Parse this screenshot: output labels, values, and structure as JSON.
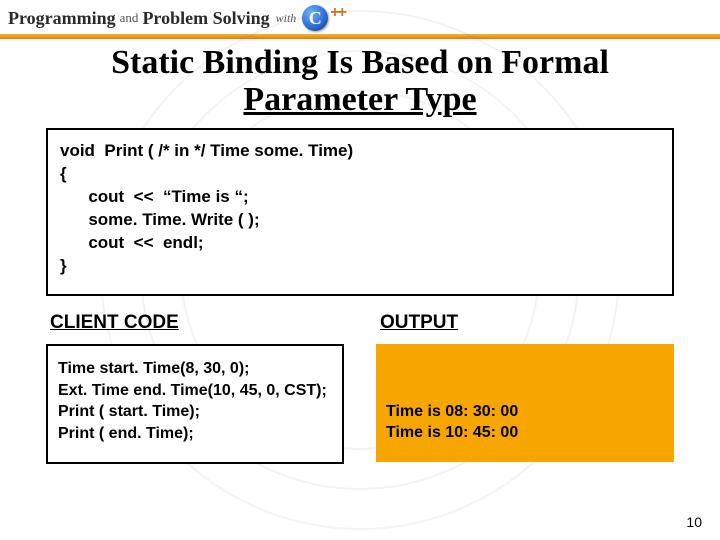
{
  "header": {
    "word1": "Programming",
    "and": "and",
    "word2": "Problem Solving",
    "with": "with",
    "logo_letter": "C",
    "logo_plus": "++"
  },
  "title_line1": "Static Binding Is Based on Formal",
  "title_line2": "Parameter Type",
  "code_main": "void  Print ( /* in */ Time some. Time)\n{\n      cout  <<  “Time is “;\n      some. Time. Write ( );\n      cout  <<  endl;\n}",
  "labels": {
    "client": "CLIENT  CODE",
    "output": "OUTPUT"
  },
  "client_code": "Time start. Time(8, 30, 0);\nExt. Time end. Time(10, 45, 0, CST);\nPrint ( start. Time);\nPrint ( end. Time);",
  "output_text": "Time is 08: 30: 00\nTime is 10: 45: 00",
  "page_number": "10",
  "colors": {
    "orange_bar_top": "#f9b233",
    "orange_bar_bottom": "#e87b00",
    "output_bg": "#f7a600",
    "logo_blue": "#2e6fd6",
    "logo_plus": "#e36f1e"
  }
}
